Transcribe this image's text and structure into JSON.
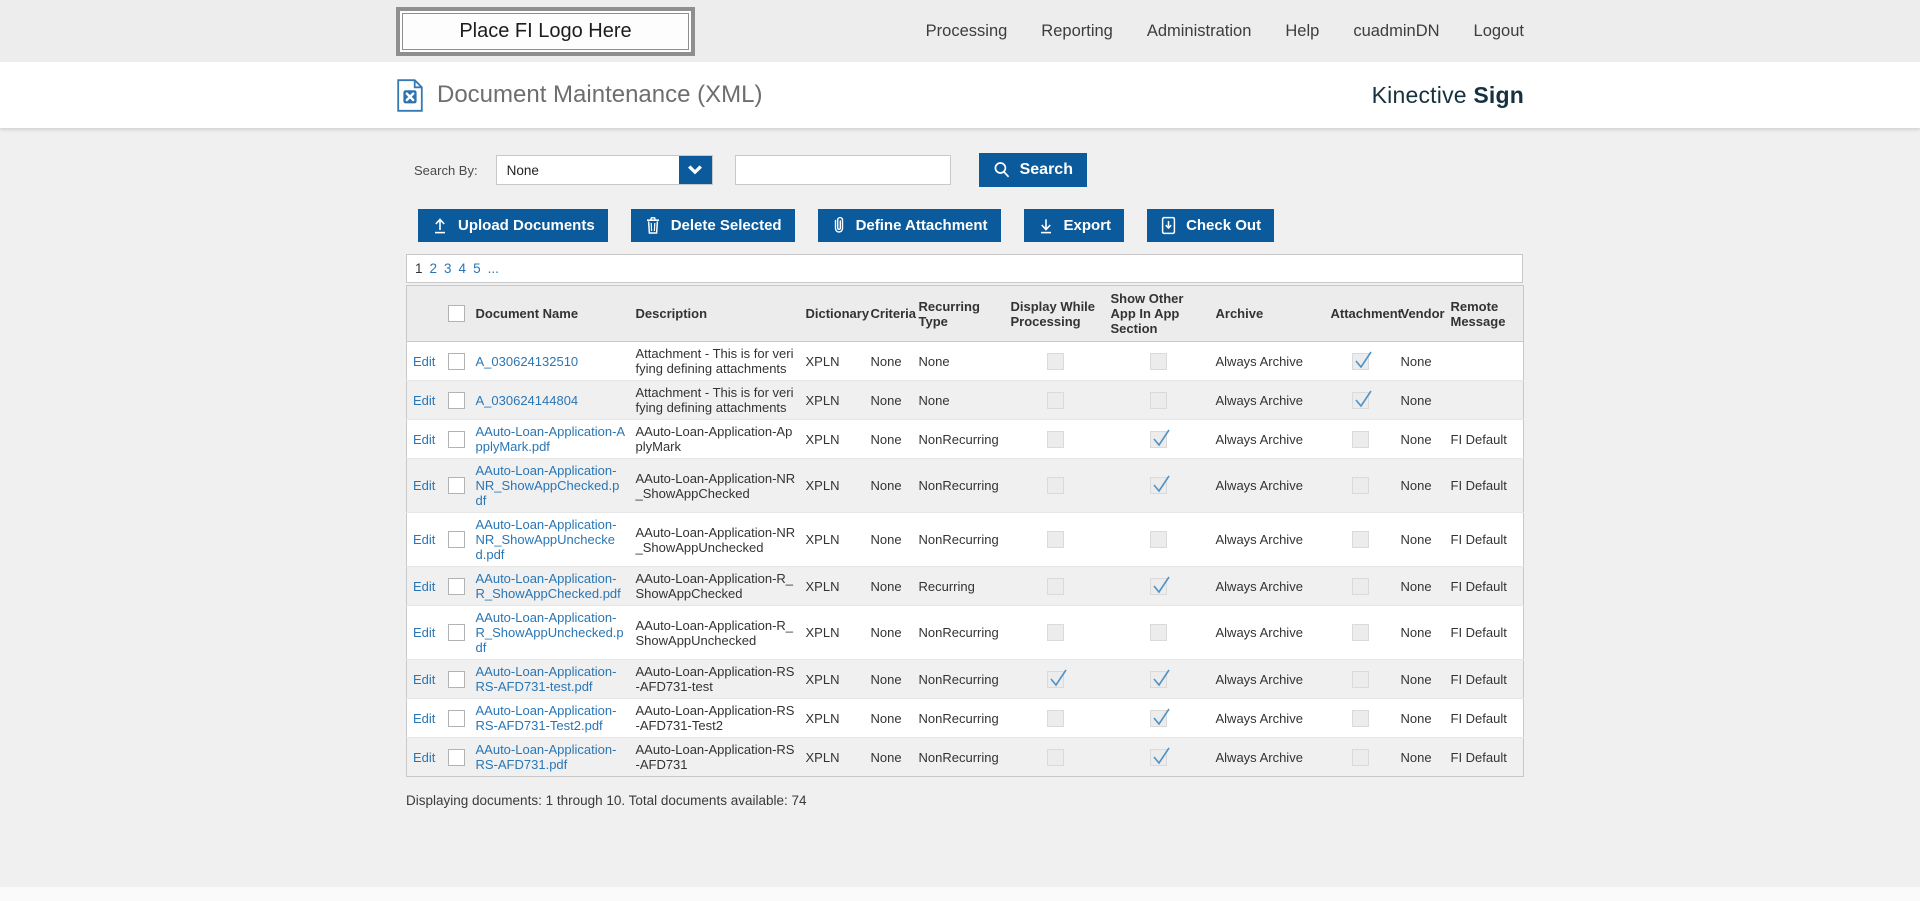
{
  "nav": {
    "logo_text": "Place FI Logo Here",
    "items": [
      "Processing",
      "Reporting",
      "Administration",
      "Help",
      "cuadminDN",
      "Logout"
    ]
  },
  "header": {
    "title": "Document Maintenance (XML)",
    "brand_regular": "Kinective ",
    "brand_bold": "Sign"
  },
  "search": {
    "label": "Search By:",
    "dropdown_value": "None",
    "input_value": "",
    "button_label": "Search"
  },
  "toolbar": {
    "upload_label": "Upload Documents",
    "delete_label": "Delete Selected",
    "define_attachment_label": "Define Attachment",
    "export_label": "Export",
    "checkout_label": "Check Out"
  },
  "pagination": {
    "current": "1",
    "pages": [
      "2",
      "3",
      "4",
      "5"
    ],
    "ellipsis": "..."
  },
  "table": {
    "edit_label": "Edit",
    "headers": {
      "document_name": "Document Name",
      "description": "Description",
      "dictionary": "Dictionary",
      "criteria": "Criteria",
      "recurring_type": "Recurring Type",
      "display_while_processing": "Display While Processing",
      "show_other_app": "Show Other App In App Section",
      "archive": "Archive",
      "attachment": "Attachment",
      "vendor": "Vendor",
      "remote_message": "Remote Message"
    },
    "rows": [
      {
        "document_name": "A_030624132510",
        "description": "Attachment - This is for verifying defining attachments",
        "dictionary": "XPLN",
        "criteria": "None",
        "recurring_type": "None",
        "display_while_processing": false,
        "show_other_app": false,
        "archive": "Always Archive",
        "attachment": true,
        "vendor": "None",
        "remote_message": ""
      },
      {
        "document_name": "A_030624144804",
        "description": "Attachment - This is for verifying defining attachments",
        "dictionary": "XPLN",
        "criteria": "None",
        "recurring_type": "None",
        "display_while_processing": false,
        "show_other_app": false,
        "archive": "Always Archive",
        "attachment": true,
        "vendor": "None",
        "remote_message": ""
      },
      {
        "document_name": "AAuto-Loan-Application-ApplyMark.pdf",
        "description": "AAuto-Loan-Application-ApplyMark",
        "dictionary": "XPLN",
        "criteria": "None",
        "recurring_type": "NonRecurring",
        "display_while_processing": false,
        "show_other_app": true,
        "archive": "Always Archive",
        "attachment": false,
        "vendor": "None",
        "remote_message": "FI Default"
      },
      {
        "document_name": "AAuto-Loan-Application-NR_ShowAppChecked.pdf",
        "description": "AAuto-Loan-Application-NR_ShowAppChecked",
        "dictionary": "XPLN",
        "criteria": "None",
        "recurring_type": "NonRecurring",
        "display_while_processing": false,
        "show_other_app": true,
        "archive": "Always Archive",
        "attachment": false,
        "vendor": "None",
        "remote_message": "FI Default"
      },
      {
        "document_name": "AAuto-Loan-Application-NR_ShowAppUnchecked.pdf",
        "description": "AAuto-Loan-Application-NR_ShowAppUnchecked",
        "dictionary": "XPLN",
        "criteria": "None",
        "recurring_type": "NonRecurring",
        "display_while_processing": false,
        "show_other_app": false,
        "archive": "Always Archive",
        "attachment": false,
        "vendor": "None",
        "remote_message": "FI Default"
      },
      {
        "document_name": "AAuto-Loan-Application-R_ShowAppChecked.pdf",
        "description": "AAuto-Loan-Application-R_ShowAppChecked",
        "dictionary": "XPLN",
        "criteria": "None",
        "recurring_type": "Recurring",
        "display_while_processing": false,
        "show_other_app": true,
        "archive": "Always Archive",
        "attachment": false,
        "vendor": "None",
        "remote_message": "FI Default"
      },
      {
        "document_name": "AAuto-Loan-Application-R_ShowAppUnchecked.pdf",
        "description": "AAuto-Loan-Application-R_ShowAppUnchecked",
        "dictionary": "XPLN",
        "criteria": "None",
        "recurring_type": "NonRecurring",
        "display_while_processing": false,
        "show_other_app": false,
        "archive": "Always Archive",
        "attachment": false,
        "vendor": "None",
        "remote_message": "FI Default"
      },
      {
        "document_name": "AAuto-Loan-Application-RS-AFD731-test.pdf",
        "description": "AAuto-Loan-Application-RS-AFD731-test",
        "dictionary": "XPLN",
        "criteria": "None",
        "recurring_type": "NonRecurring",
        "display_while_processing": true,
        "show_other_app": true,
        "archive": "Always Archive",
        "attachment": false,
        "vendor": "None",
        "remote_message": "FI Default"
      },
      {
        "document_name": "AAuto-Loan-Application-RS-AFD731-Test2.pdf",
        "description": "AAuto-Loan-Application-RS-AFD731-Test2",
        "dictionary": "XPLN",
        "criteria": "None",
        "recurring_type": "NonRecurring",
        "display_while_processing": false,
        "show_other_app": true,
        "archive": "Always Archive",
        "attachment": false,
        "vendor": "None",
        "remote_message": "FI Default"
      },
      {
        "document_name": "AAuto-Loan-Application-RS-AFD731.pdf",
        "description": "AAuto-Loan-Application-RS-AFD731",
        "dictionary": "XPLN",
        "criteria": "None",
        "recurring_type": "NonRecurring",
        "display_while_processing": false,
        "show_other_app": true,
        "archive": "Always Archive",
        "attachment": false,
        "vendor": "None",
        "remote_message": "FI Default"
      }
    ]
  },
  "footer": {
    "summary": "Displaying documents: 1 through 10. Total documents available: 74"
  },
  "colors": {
    "primary_blue": "#0a5a9c",
    "link_blue": "#2a76b5",
    "check_blue": "#4e93c8",
    "brand_dark": "#17313e"
  }
}
